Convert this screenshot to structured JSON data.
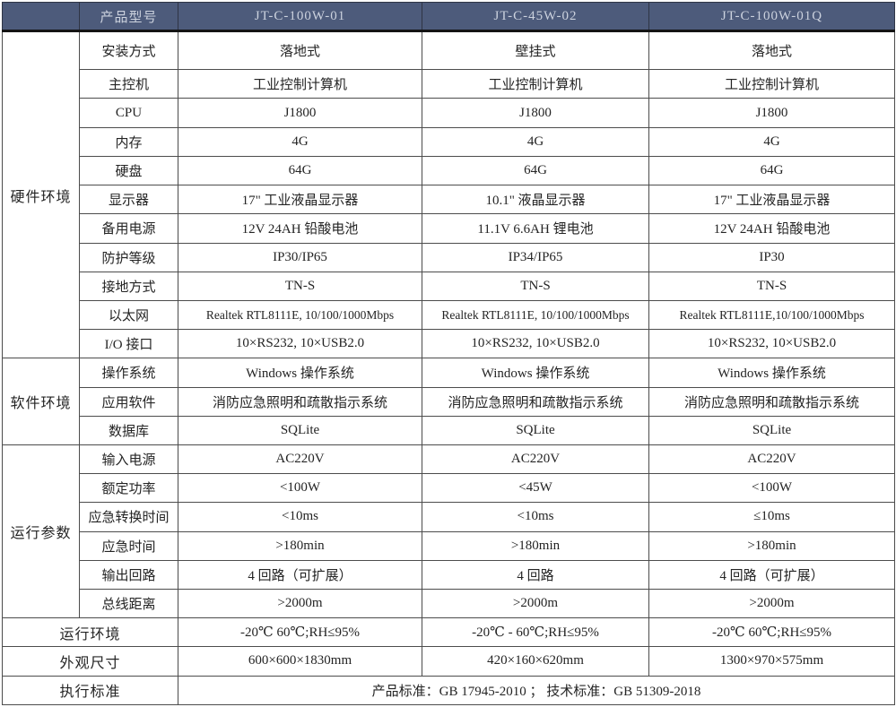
{
  "table": {
    "header": {
      "corner": "",
      "param_label": "产品型号",
      "products": [
        "JT-C-100W-01",
        "JT-C-45W-02",
        "JT-C-100W-01Q"
      ]
    },
    "groups": [
      {
        "label": "硬件环境",
        "rows": [
          {
            "label": "安装方式",
            "values": [
              "落地式",
              "壁挂式",
              "落地式"
            ]
          },
          {
            "label": "主控机",
            "values": [
              "工业控制计算机",
              "工业控制计算机",
              "工业控制计算机"
            ]
          },
          {
            "label": "CPU",
            "values": [
              "J1800",
              "J1800",
              "J1800"
            ]
          },
          {
            "label": "内存",
            "values": [
              "4G",
              "4G",
              "4G"
            ]
          },
          {
            "label": "硬盘",
            "values": [
              "64G",
              "64G",
              "64G"
            ]
          },
          {
            "label": "显示器",
            "values": [
              "17\" 工业液晶显示器",
              "10.1\" 液晶显示器",
              "17\" 工业液晶显示器"
            ]
          },
          {
            "label": "备用电源",
            "values": [
              "12V 24AH 铅酸电池",
              "11.1V 6.6AH 锂电池",
              "12V 24AH 铅酸电池"
            ]
          },
          {
            "label": "防护等级",
            "values": [
              "IP30/IP65",
              "IP34/IP65",
              "IP30"
            ]
          },
          {
            "label": "接地方式",
            "values": [
              "TN-S",
              "TN-S",
              "TN-S"
            ]
          },
          {
            "label": "以太网",
            "values": [
              "Realtek RTL8111E, 10/100/1000Mbps",
              "Realtek RTL8111E, 10/100/1000Mbps",
              "Realtek RTL8111E,10/100/1000Mbps"
            ]
          },
          {
            "label": "I/O 接口",
            "values": [
              "10×RS232, 10×USB2.0",
              "10×RS232, 10×USB2.0",
              "10×RS232, 10×USB2.0"
            ]
          }
        ]
      },
      {
        "label": "软件环境",
        "rows": [
          {
            "label": "操作系统",
            "values": [
              "Windows 操作系统",
              "Windows 操作系统",
              "Windows 操作系统"
            ]
          },
          {
            "label": "应用软件",
            "values": [
              "消防应急照明和疏散指示系统",
              "消防应急照明和疏散指示系统",
              "消防应急照明和疏散指示系统"
            ]
          },
          {
            "label": "数据库",
            "values": [
              "SQLite",
              "SQLite",
              "SQLite"
            ]
          }
        ]
      },
      {
        "label": "运行参数",
        "rows": [
          {
            "label": "输入电源",
            "values": [
              "AC220V",
              "AC220V",
              "AC220V"
            ]
          },
          {
            "label": "额定功率",
            "values": [
              "<100W",
              "<45W",
              "<100W"
            ]
          },
          {
            "label": "应急转换时间",
            "values": [
              "<10ms",
              "<10ms",
              "≤10ms"
            ]
          },
          {
            "label": "应急时间",
            "values": [
              ">180min",
              ">180min",
              ">180min"
            ]
          },
          {
            "label": "输出回路",
            "values": [
              "4 回路（可扩展）",
              "4 回路",
              "4 回路（可扩展）"
            ]
          },
          {
            "label": "总线距离",
            "values": [
              ">2000m",
              ">2000m",
              ">2000m"
            ]
          }
        ]
      }
    ],
    "footer": {
      "env": {
        "label": "运行环境",
        "values": [
          "-20℃ 60℃;RH≤95%",
          "-20℃ - 60℃;RH≤95%",
          "-20℃ 60℃;RH≤95%"
        ]
      },
      "size": {
        "label": "外观尺寸",
        "values": [
          "600×600×1830mm",
          "420×160×620mm",
          "1300×970×575mm"
        ]
      },
      "standard": {
        "label": "执行标准",
        "value": "产品标准：GB 17945-2010 ； 技术标准：GB 51309-2018"
      }
    },
    "colors": {
      "header_bg": "#4d5b7b",
      "header_text": "#ccd2de",
      "border": "#4c4c4c",
      "body_text": "#242424"
    }
  }
}
